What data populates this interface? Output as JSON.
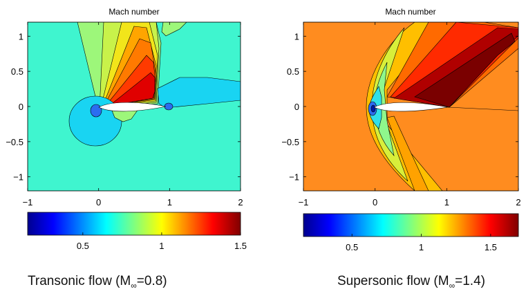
{
  "chart_data": [
    {
      "type": "contour",
      "title": "Mach number",
      "caption": "Transonic flow (M∞=0.8)",
      "caption_parts": {
        "pre": "Transonic flow (M",
        "sub": "∞",
        "post": "=0.8)"
      },
      "xlim": [
        -1,
        2
      ],
      "ylim": [
        -1.2,
        1.2
      ],
      "xticks": [
        -1,
        0,
        1,
        2
      ],
      "yticks": [
        -1,
        -0.5,
        0,
        0.5,
        1
      ],
      "ytick_labels": [
        "−1",
        "−0.5",
        "0",
        "0.5",
        "1"
      ],
      "xtick_labels": [
        "−1",
        "0",
        "1",
        "2"
      ],
      "freestream_mach": 0.8,
      "colorbar": {
        "range": [
          0.15,
          1.5
        ],
        "ticks": [
          0.5,
          1,
          1.5
        ],
        "tick_labels": [
          "0.5",
          "1",
          "1.5"
        ]
      },
      "background_color": "#3ff5cf"
    },
    {
      "type": "contour",
      "title": "Mach number",
      "caption": "Supersonic flow (M∞=1.4)",
      "caption_parts": {
        "pre": "Supersonic flow (M",
        "sub": "∞",
        "post": "=1.4)"
      },
      "xlim": [
        -1,
        2
      ],
      "ylim": [
        -1.2,
        1.2
      ],
      "xticks": [
        -1,
        0,
        1,
        2
      ],
      "yticks": [
        -1,
        -0.5,
        0,
        0.5,
        1
      ],
      "ytick_labels": [
        "−1",
        "−0.5",
        "0",
        "0.5",
        "1"
      ],
      "xtick_labels": [
        "−1",
        "0",
        "1",
        "2"
      ],
      "freestream_mach": 1.4,
      "colorbar": {
        "range": [
          0.15,
          1.7
        ],
        "ticks": [
          0.5,
          1,
          1.5
        ],
        "tick_labels": [
          "0.5",
          "1",
          "1.5"
        ]
      },
      "background_color": "#ff8c1f"
    }
  ]
}
